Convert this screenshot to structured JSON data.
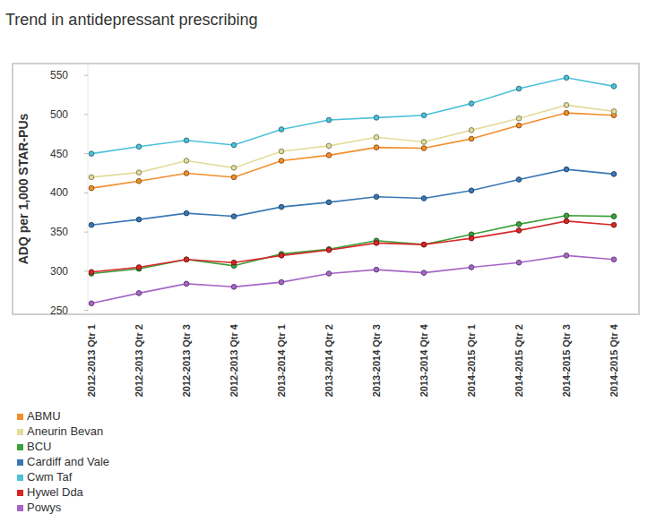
{
  "chart_data": {
    "type": "line",
    "title": "Trend in antidepressant prescribing",
    "y_label": "ADQ per 1,000 STAR-PUs",
    "categories": [
      "2012-2013 Qtr 1",
      "2012-2013 Qtr 2",
      "2012-2013 Qtr 3",
      "2012-2013 Qtr 4",
      "2013-2014 Qtr 1",
      "2013-2014 Qtr 2",
      "2013-2014 Qtr 3",
      "2013-2014 Qtr 4",
      "2014-2015 Qtr 1",
      "2014-2015 Qtr 2",
      "2014-2015 Qtr 3",
      "2014-2015 Qtr 4"
    ],
    "series": [
      {
        "name": "ABMU",
        "color": "#f28e2b",
        "values": [
          406,
          415,
          425,
          420,
          441,
          448,
          458,
          457,
          469,
          486,
          502,
          499
        ]
      },
      {
        "name": "Aneurin Bevan",
        "color": "#e3dc9a",
        "values": [
          420,
          426,
          441,
          432,
          453,
          460,
          471,
          465,
          480,
          495,
          512,
          504
        ]
      },
      {
        "name": "BCU",
        "color": "#3ca03c",
        "values": [
          297,
          303,
          315,
          307,
          322,
          328,
          339,
          334,
          347,
          360,
          371,
          370
        ]
      },
      {
        "name": "Cardiff and Vale",
        "color": "#3a78b5",
        "values": [
          359,
          366,
          374,
          370,
          382,
          388,
          395,
          393,
          403,
          417,
          430,
          424
        ]
      },
      {
        "name": "Cwm Taf",
        "color": "#4bc1d9",
        "values": [
          450,
          459,
          467,
          461,
          481,
          493,
          496,
          499,
          514,
          533,
          547,
          536
        ]
      },
      {
        "name": "Hywel Dda",
        "color": "#d62728",
        "values": [
          299,
          305,
          315,
          311,
          320,
          327,
          336,
          334,
          342,
          352,
          364,
          359
        ]
      },
      {
        "name": "Powys",
        "color": "#a566c6",
        "values": [
          259,
          272,
          284,
          280,
          286,
          297,
          302,
          298,
          305,
          311,
          320,
          315
        ]
      }
    ],
    "ylim": [
      245,
      565
    ],
    "yticks": [
      250,
      300,
      350,
      400,
      450,
      500,
      550
    ],
    "grid": false,
    "marker": "circle",
    "legend": "bottom-left"
  }
}
